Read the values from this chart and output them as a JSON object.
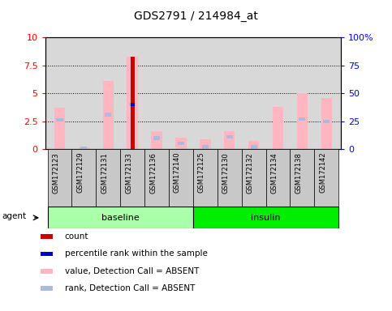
{
  "title": "GDS2791 / 214984_at",
  "samples": [
    "GSM172123",
    "GSM172129",
    "GSM172131",
    "GSM172133",
    "GSM172136",
    "GSM172140",
    "GSM172125",
    "GSM172130",
    "GSM172132",
    "GSM172134",
    "GSM172138",
    "GSM172142"
  ],
  "groups": [
    "baseline",
    "baseline",
    "baseline",
    "baseline",
    "baseline",
    "baseline",
    "insulin",
    "insulin",
    "insulin",
    "insulin",
    "insulin",
    "insulin"
  ],
  "value_absent": [
    3.7,
    0.15,
    6.1,
    8.3,
    1.65,
    1.0,
    0.9,
    1.65,
    0.75,
    3.8,
    5.05,
    4.6
  ],
  "rank_absent": [
    2.6,
    0.1,
    3.1,
    4.0,
    1.0,
    0.55,
    0.2,
    1.1,
    0.2,
    0.0,
    2.7,
    2.5
  ],
  "count_value": [
    0.0,
    0.0,
    0.0,
    8.3,
    0.0,
    0.0,
    0.0,
    0.0,
    0.0,
    0.0,
    0.0,
    0.0
  ],
  "percentile_value": [
    0.0,
    0.0,
    0.0,
    4.0,
    0.0,
    0.0,
    0.0,
    0.0,
    0.0,
    0.0,
    0.0,
    0.0
  ],
  "ylim": [
    0,
    10
  ],
  "yticks_left": [
    0,
    2.5,
    5.0,
    7.5,
    10
  ],
  "yticks_right_vals": [
    0,
    25,
    50,
    75,
    100
  ],
  "dotted_lines": [
    2.5,
    5.0,
    7.5
  ],
  "color_count": "#CC0000",
  "color_percentile": "#0000CC",
  "color_value_absent": "#FFB6C1",
  "color_rank_absent": "#AABBDD",
  "bar_width": 0.45,
  "background_plot": "#D8D8D8",
  "color_baseline": "#AAFFAA",
  "color_insulin": "#00EE00",
  "legend_items": [
    {
      "color": "#CC0000",
      "label": "count"
    },
    {
      "color": "#0000CC",
      "label": "percentile rank within the sample"
    },
    {
      "color": "#FFB6C1",
      "label": "value, Detection Call = ABSENT"
    },
    {
      "color": "#AABBDD",
      "label": "rank, Detection Call = ABSENT"
    }
  ]
}
